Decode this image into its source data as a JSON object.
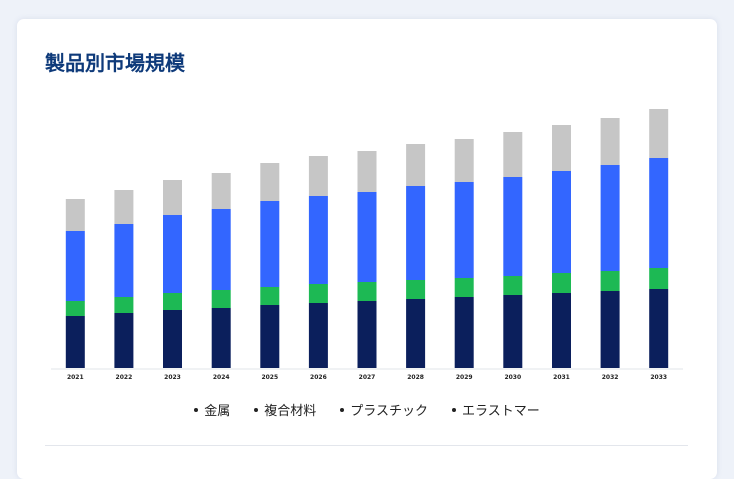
{
  "chart_data": {
    "type": "bar",
    "stacked": true,
    "title": "製品別市場規模",
    "xlabel": "",
    "ylabel": "",
    "categories": [
      "2021",
      "2022",
      "2023",
      "2024",
      "2025",
      "2026",
      "2027",
      "2028",
      "2029",
      "2030",
      "2031",
      "2032",
      "2033"
    ],
    "ylim": [
      0,
      255
    ],
    "grid": false,
    "legend_position": "bottom",
    "series": [
      {
        "name": "金属",
        "color": "#0b1f5c",
        "values": [
          52,
          55,
          58,
          60,
          63,
          65,
          67,
          69,
          71,
          73,
          75,
          77,
          79
        ]
      },
      {
        "name": "複合材料",
        "color": "#1db954",
        "values": [
          15,
          16,
          17,
          18,
          18,
          19,
          19,
          19,
          19,
          19,
          20,
          20,
          21
        ]
      },
      {
        "name": "プラスチック",
        "color": "#3366ff",
        "values": [
          70,
          73,
          78,
          81,
          86,
          88,
          90,
          94,
          96,
          99,
          102,
          106,
          110
        ]
      },
      {
        "name": "エラストマー",
        "color": "#c6c6c6",
        "values": [
          32,
          34,
          35,
          36,
          38,
          40,
          41,
          42,
          43,
          45,
          46,
          47,
          49
        ]
      }
    ]
  }
}
